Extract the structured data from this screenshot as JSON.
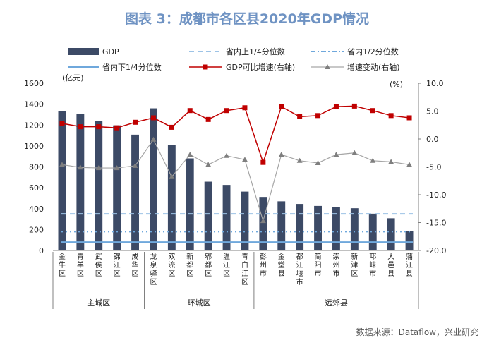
{
  "title": "图表 3：成都市各区县2020年GDP情况",
  "source": "数据来源：Dataflow，兴业研究",
  "colors": {
    "bar": "#3c4a66",
    "gdp_growth": "#c00000",
    "growth_change": "#a6a6a6",
    "upper_quartile": "#9dc3e6",
    "median": "#6fa8dc",
    "lower_quartile": "#6fa8dc",
    "title": "#6f93c3"
  },
  "chart_data": {
    "type": "bar",
    "left_axis_unit": "(亿元)",
    "right_axis_unit": "(%)",
    "ylim_left": [
      0,
      1600
    ],
    "yticks_left": [
      "0",
      "200",
      "400",
      "600",
      "800",
      "1000",
      "1200",
      "1400",
      "1600"
    ],
    "ylim_right": [
      -20,
      10
    ],
    "yticks_right": [
      "-20.0",
      "-15.0",
      "-10.0",
      "-5.0",
      "0.0",
      "5.0",
      "10.0"
    ],
    "legend": {
      "gdp": "GDP",
      "upper_quartile": "省内上1/4分位数",
      "median": "省内1/2分位数",
      "lower_quartile": "省内下1/4分位数",
      "gdp_growth": "GDP可比增速(右轴)",
      "growth_change": "增速变动(右轴)"
    },
    "categories": [
      "金牛区",
      "青羊区",
      "武侯区",
      "锦江区",
      "成华区",
      "龙泉驿区",
      "双流区",
      "新都区",
      "郫都区",
      "温江区",
      "青白江区",
      "彭州市",
      "金堂县",
      "都江堰市",
      "简阳市",
      "崇州市",
      "新津区",
      "邛崃市",
      "大邑县",
      "蒲江县"
    ],
    "groups": [
      {
        "label": "主城区",
        "count": 5
      },
      {
        "label": "环城区",
        "count": 6
      },
      {
        "label": "远郊县",
        "count": 9
      }
    ],
    "series": [
      {
        "name": "GDP",
        "axis": "left",
        "values": [
          1335,
          1306,
          1237,
          1197,
          1108,
          1360,
          1008,
          881,
          658,
          627,
          563,
          512,
          470,
          445,
          426,
          412,
          404,
          352,
          308,
          183
        ]
      },
      {
        "name": "GDP可比增速(右轴)",
        "axis": "right",
        "values": [
          2.8,
          2.2,
          2.2,
          2.0,
          3.0,
          3.8,
          2.1,
          5.1,
          3.5,
          5.1,
          5.6,
          -4.2,
          5.8,
          4.0,
          4.2,
          5.8,
          5.9,
          5.1,
          4.2,
          3.8
        ]
      },
      {
        "name": "增速变动(右轴)",
        "axis": "right",
        "values": [
          -4.6,
          -5.1,
          -5.2,
          -5.2,
          -4.8,
          -0.1,
          -6.8,
          -2.8,
          -4.6,
          -3.0,
          -3.7,
          -14.7,
          -2.8,
          -3.9,
          -4.3,
          -2.8,
          -2.5,
          -3.9,
          -4.1,
          -4.6
        ]
      }
    ],
    "reference_lines": {
      "upper_quartile": 350,
      "median": 180,
      "lower_quartile": 80
    }
  }
}
